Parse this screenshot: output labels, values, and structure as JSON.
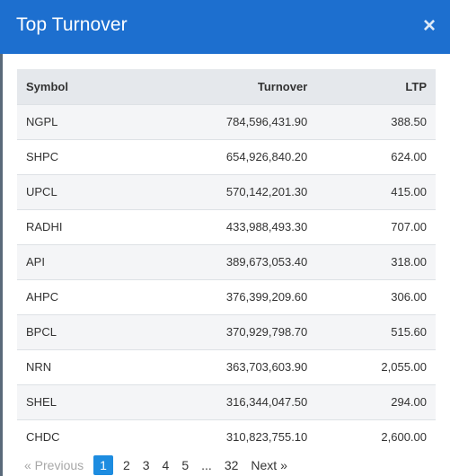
{
  "header": {
    "title": "Top Turnover",
    "close_label": "×"
  },
  "table": {
    "columns": [
      "Symbol",
      "Turnover",
      "LTP"
    ],
    "rows": [
      [
        "NGPL",
        "784,596,431.90",
        "388.50"
      ],
      [
        "SHPC",
        "654,926,840.20",
        "624.00"
      ],
      [
        "UPCL",
        "570,142,201.30",
        "415.00"
      ],
      [
        "RADHI",
        "433,988,493.30",
        "707.00"
      ],
      [
        "API",
        "389,673,053.40",
        "318.00"
      ],
      [
        "AHPC",
        "376,399,209.60",
        "306.00"
      ],
      [
        "BPCL",
        "370,929,798.70",
        "515.60"
      ],
      [
        "NRN",
        "363,703,603.90",
        "2,055.00"
      ],
      [
        "SHEL",
        "316,344,047.50",
        "294.00"
      ],
      [
        "CHDC",
        "310,823,755.10",
        "2,600.00"
      ]
    ]
  },
  "pagination": {
    "prev": "« Previous",
    "pages": [
      "1",
      "2",
      "3",
      "4",
      "5",
      "...",
      "32"
    ],
    "active": "1",
    "next": "Next »"
  },
  "colors": {
    "header_bg": "#1d6fcf",
    "active_page": "#1d8ce0"
  }
}
